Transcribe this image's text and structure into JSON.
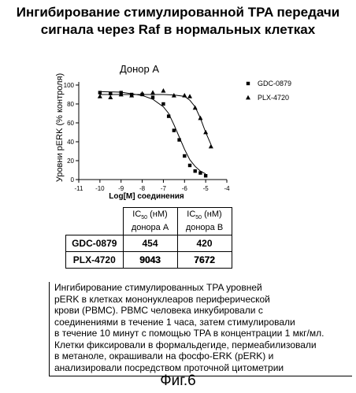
{
  "page": {
    "title_line1": "Ингибирование стимулированной TPA передачи",
    "title_line2": "сигнала через Raf в нормальных клетках"
  },
  "chart_data": {
    "type": "scatter",
    "title": "Донор   А",
    "xlabel": "Log[M] соединения",
    "ylabel": "Уровни pERK (% контроля)",
    "xlim": [
      -11,
      -4
    ],
    "ylim": [
      0,
      100
    ],
    "xticks": [
      -11,
      -10,
      -9,
      -8,
      -7,
      -6,
      -5,
      -4
    ],
    "yticks": [
      0,
      20,
      40,
      60,
      80,
      100
    ],
    "legend_position": "right",
    "series": [
      {
        "name": "GDC-0879",
        "marker": "square",
        "x": [
          -10,
          -9.5,
          -9,
          -8.5,
          -8,
          -7.5,
          -7,
          -6.75,
          -6.5,
          -6.25,
          -6,
          -5.75,
          -5.5,
          -5.25,
          -5
        ],
        "y": [
          92,
          91,
          92,
          90,
          90,
          87,
          80,
          67,
          52,
          42,
          25,
          15,
          9,
          7,
          4
        ],
        "curve_x": [
          -10,
          -9,
          -8,
          -7.5,
          -7,
          -6.75,
          -6.5,
          -6.25,
          -6,
          -5.75,
          -5.5,
          -5.25,
          -5
        ],
        "curve_y": [
          93,
          92.5,
          89,
          85,
          77,
          70,
          58,
          45,
          32,
          21,
          14,
          9,
          6
        ]
      },
      {
        "name": "PLX-4720",
        "marker": "triangle",
        "x": [
          -10,
          -9.5,
          -9,
          -8.5,
          -8,
          -7.5,
          -7,
          -6.5,
          -6,
          -5.75,
          -5.5,
          -5.25,
          -5,
          -4.75
        ],
        "y": [
          88,
          87,
          90,
          89,
          91,
          92,
          94,
          89,
          89,
          88,
          76,
          65,
          50,
          35
        ],
        "curve_x": [
          -10,
          -9,
          -8,
          -7,
          -6.5,
          -6,
          -5.75,
          -5.5,
          -5.25,
          -5,
          -4.75
        ],
        "curve_y": [
          90,
          90,
          90,
          90,
          89.5,
          88,
          84,
          77,
          65,
          50,
          37
        ]
      }
    ]
  },
  "table": {
    "col1_line1": "IC",
    "col1_sub": "50",
    "col1_unit": "(нМ)",
    "col1_line2": "донора А",
    "col2_line1": "IC",
    "col2_sub": "50",
    "col2_unit": "(нМ)",
    "col2_line2": "донора В",
    "rows": [
      {
        "name": "GDC-0879",
        "a": "454",
        "b": "420"
      },
      {
        "name": "PLX-4720",
        "a": "9043",
        "b": "7672"
      }
    ]
  },
  "caption": {
    "line1": "Ингибирование стимулированных TPA уровней",
    "line2": "pERK в клетках мононуклеаров периферической",
    "line3": "крови (PBMC). PBMC человека инкубировали с",
    "line4": "соединениями в течение 1 часа, затем стимулировали",
    "line5": "в течение 10 минут с помощью TPA в концентрации 1 мкг/мл.",
    "line6": "Клетки фиксировали в формальдегиде, пермеабилизовали",
    "line7": "в метаноле, окрашивали на фосфо-ERK (pERK) и",
    "line8": "анализировали посредством проточной цитометрии"
  },
  "figure_label": "Фиг.6"
}
